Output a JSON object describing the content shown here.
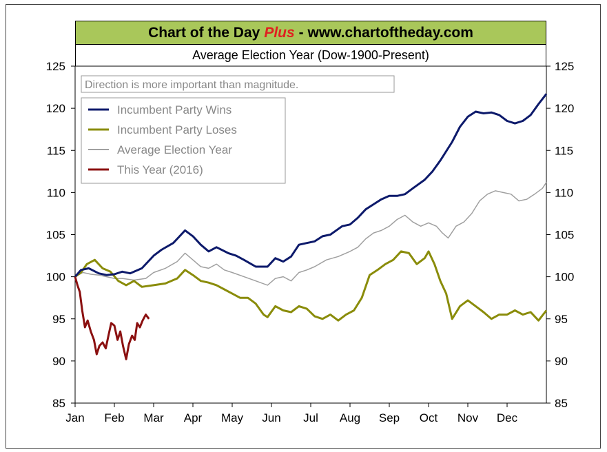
{
  "header": {
    "title_left": "Chart of the Day",
    "title_plus": "Plus",
    "title_right": "- www.chartoftheday.com"
  },
  "colors": {
    "header_bg": "#a9c75a",
    "plus_text": "#e02020",
    "incumbent_wins": "#0d1a6b",
    "incumbent_loses": "#8a8c0a",
    "average": "#a0a0a0",
    "this_year": "#8b1010"
  },
  "chart_data": {
    "type": "line",
    "title": "Average Election Year (Dow-1900-Present)",
    "annotation": "Direction is more important than magnitude.",
    "xlabel": "",
    "ylabel": "",
    "x_ticks": [
      "Jan",
      "Feb",
      "Mar",
      "Apr",
      "May",
      "Jun",
      "Jul",
      "Aug",
      "Sep",
      "Oct",
      "Nov",
      "Dec"
    ],
    "x_unit": "month",
    "xlim": [
      0,
      12
    ],
    "y_ticks": [
      85,
      90,
      95,
      100,
      105,
      110,
      115,
      120,
      125
    ],
    "ylim": [
      85,
      125
    ],
    "grid": false,
    "legend_position": "top-left",
    "series": [
      {
        "name": "Incumbent Party Wins",
        "color": "#0d1a6b",
        "x": [
          0,
          0.15,
          0.35,
          0.6,
          0.8,
          1.0,
          1.2,
          1.4,
          1.7,
          2.0,
          2.2,
          2.5,
          2.8,
          3.0,
          3.2,
          3.4,
          3.6,
          3.9,
          4.1,
          4.3,
          4.6,
          4.9,
          5.1,
          5.3,
          5.5,
          5.7,
          5.9,
          6.1,
          6.3,
          6.5,
          6.8,
          7.0,
          7.2,
          7.4,
          7.6,
          7.8,
          8.0,
          8.2,
          8.4,
          8.6,
          8.9,
          9.1,
          9.3,
          9.6,
          9.8,
          10.0,
          10.2,
          10.4,
          10.6,
          10.8,
          11.0,
          11.2,
          11.4,
          11.6,
          11.8,
          12.0
        ],
        "values": [
          100,
          100.8,
          101.0,
          100.4,
          100.2,
          100.3,
          100.6,
          100.4,
          101.0,
          102.5,
          103.2,
          104.0,
          105.5,
          104.8,
          103.8,
          103.0,
          103.5,
          102.8,
          102.5,
          102.0,
          101.2,
          101.2,
          102.2,
          101.8,
          102.4,
          103.8,
          104.0,
          104.2,
          104.8,
          105.0,
          106.0,
          106.2,
          107.0,
          108.0,
          108.6,
          109.2,
          109.6,
          109.6,
          109.8,
          110.5,
          111.5,
          112.5,
          113.8,
          116.0,
          117.8,
          119.0,
          119.6,
          119.4,
          119.5,
          119.2,
          118.5,
          118.2,
          118.5,
          119.2,
          120.5,
          121.7
        ]
      },
      {
        "name": "Incumbent Party Loses",
        "color": "#8a8c0a",
        "x": [
          0,
          0.15,
          0.3,
          0.5,
          0.7,
          0.9,
          1.1,
          1.3,
          1.5,
          1.7,
          2.0,
          2.3,
          2.6,
          2.8,
          3.0,
          3.2,
          3.4,
          3.6,
          3.8,
          4.0,
          4.2,
          4.4,
          4.6,
          4.8,
          4.9,
          5.1,
          5.3,
          5.5,
          5.7,
          5.9,
          6.1,
          6.3,
          6.5,
          6.7,
          6.9,
          7.1,
          7.3,
          7.5,
          7.7,
          7.9,
          8.1,
          8.3,
          8.5,
          8.7,
          8.9,
          9.0,
          9.15,
          9.3,
          9.45,
          9.6,
          9.8,
          10.0,
          10.2,
          10.4,
          10.6,
          10.8,
          11.0,
          11.2,
          11.4,
          11.6,
          11.8,
          12.0
        ],
        "values": [
          100,
          100.5,
          101.5,
          102.0,
          101.0,
          100.6,
          99.5,
          99.0,
          99.5,
          98.8,
          99.0,
          99.2,
          99.8,
          100.8,
          100.2,
          99.5,
          99.3,
          99.0,
          98.5,
          98.0,
          97.5,
          97.5,
          96.8,
          95.5,
          95.2,
          96.5,
          96.0,
          95.8,
          96.5,
          96.2,
          95.3,
          95.0,
          95.5,
          94.8,
          95.5,
          96.0,
          97.5,
          100.2,
          100.8,
          101.5,
          102.0,
          103.0,
          102.8,
          101.5,
          102.2,
          103.0,
          101.5,
          99.5,
          98.0,
          95.0,
          96.5,
          97.2,
          96.5,
          95.8,
          95.0,
          95.5,
          95.5,
          96.0,
          95.5,
          95.8,
          94.8,
          96.0
        ]
      },
      {
        "name": "Average Election Year",
        "color": "#a0a0a0",
        "x": [
          0,
          0.2,
          0.4,
          0.6,
          0.8,
          1.0,
          1.2,
          1.5,
          1.8,
          2.0,
          2.3,
          2.6,
          2.8,
          3.0,
          3.2,
          3.4,
          3.6,
          3.8,
          4.0,
          4.3,
          4.6,
          4.9,
          5.1,
          5.3,
          5.5,
          5.7,
          5.9,
          6.1,
          6.4,
          6.7,
          7.0,
          7.2,
          7.4,
          7.6,
          7.8,
          8.0,
          8.2,
          8.4,
          8.6,
          8.8,
          9.0,
          9.2,
          9.35,
          9.5,
          9.7,
          9.9,
          10.1,
          10.3,
          10.5,
          10.7,
          10.9,
          11.1,
          11.3,
          11.5,
          11.7,
          11.9,
          12.0
        ],
        "values": [
          100,
          100.5,
          100.3,
          100.2,
          100.0,
          99.8,
          99.8,
          99.6,
          99.8,
          100.5,
          101.0,
          101.8,
          102.8,
          102.0,
          101.2,
          101.0,
          101.5,
          100.8,
          100.5,
          100.0,
          99.5,
          99.0,
          99.8,
          100.0,
          99.5,
          100.5,
          100.8,
          101.2,
          102.0,
          102.4,
          103.0,
          103.5,
          104.5,
          105.2,
          105.5,
          106.0,
          106.8,
          107.3,
          106.5,
          106.0,
          106.4,
          106.0,
          105.2,
          104.6,
          106.0,
          106.5,
          107.5,
          109.0,
          109.8,
          110.2,
          110.0,
          109.8,
          109.0,
          109.2,
          109.8,
          110.5,
          111.2
        ]
      },
      {
        "name": "This Year (2016)",
        "color": "#8b1010",
        "x": [
          0,
          0.06,
          0.12,
          0.18,
          0.25,
          0.32,
          0.4,
          0.48,
          0.55,
          0.62,
          0.7,
          0.78,
          0.85,
          0.92,
          1.0,
          1.08,
          1.15,
          1.22,
          1.3,
          1.37,
          1.45,
          1.52,
          1.58,
          1.65,
          1.72,
          1.8,
          1.88
        ],
        "values": [
          100,
          99.0,
          98.2,
          96.0,
          94.0,
          94.8,
          93.5,
          92.5,
          90.8,
          91.8,
          92.2,
          91.5,
          93.0,
          94.5,
          94.2,
          92.5,
          93.5,
          91.8,
          90.2,
          92.0,
          93.0,
          92.5,
          94.5,
          94.0,
          94.8,
          95.5,
          95.0
        ]
      }
    ]
  }
}
